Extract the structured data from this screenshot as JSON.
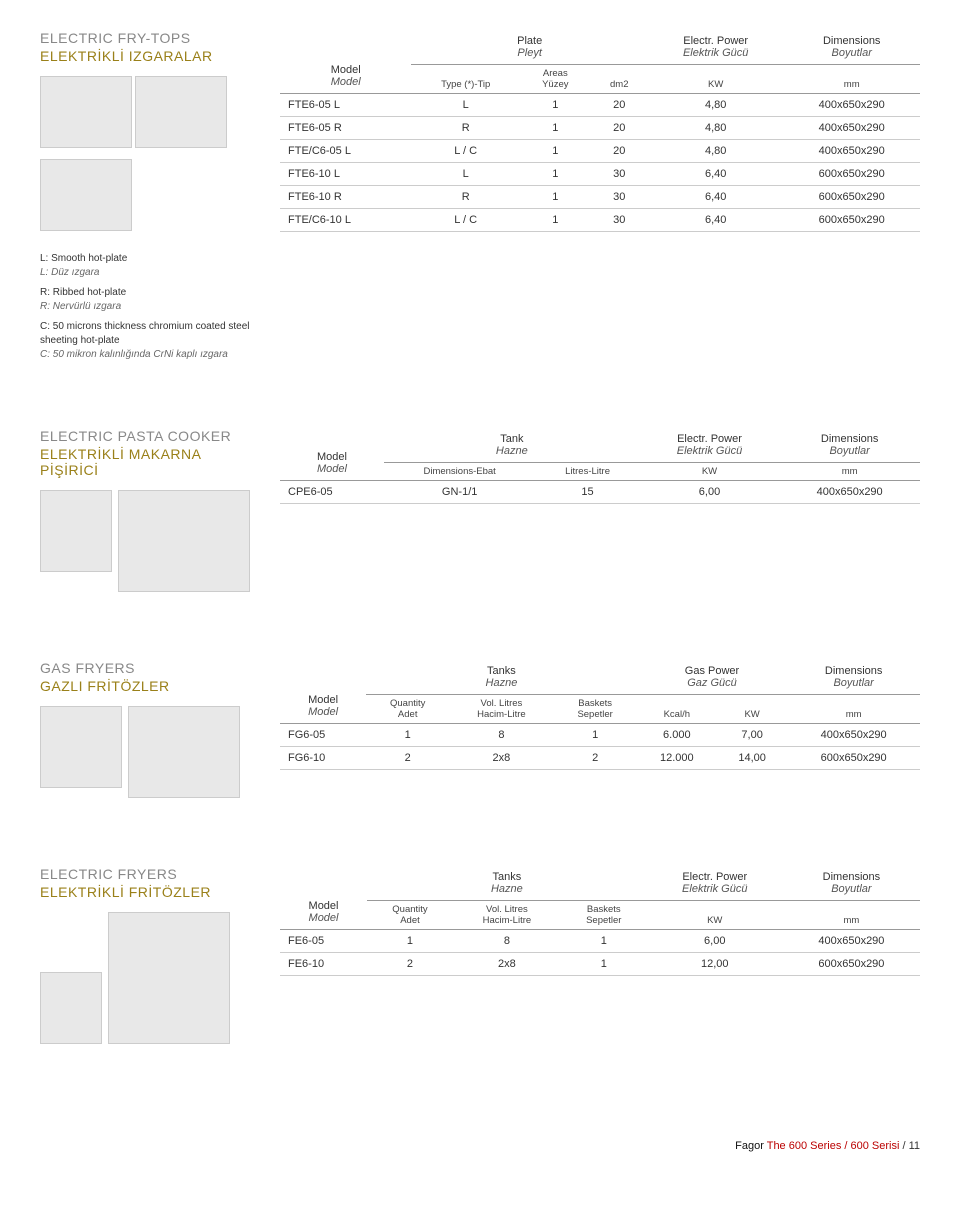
{
  "frytops": {
    "title_en": "ELECTRIC FRY-TOPS",
    "title_tr": "ELEKTRİKLİ IZGARALAR",
    "legend": {
      "l_en": "L: Smooth hot-plate",
      "l_tr": "L: Düz ızgara",
      "r_en": "R: Ribbed hot-plate",
      "r_tr": "R: Nervürlü ızgara",
      "c_en": "C: 50 microns thickness chromium coated steel sheeting hot-plate",
      "c_tr": "C: 50 mikron kalınlığında CrNi kaplı ızgara"
    },
    "headers": {
      "model_en": "Model",
      "model_tr": "Model",
      "plate_en": "Plate",
      "plate_tr": "Pleyt",
      "power_en": "Electr. Power",
      "power_tr": "Elektrik Gücü",
      "dim_en": "Dimensions",
      "dim_tr": "Boyutlar",
      "type": "Type (*)-Tip",
      "areas_en": "Areas",
      "areas_tr": "Yüzey",
      "dm2": "dm2",
      "kw": "KW",
      "mm": "mm"
    },
    "rows": [
      {
        "m": "FTE6-05 L",
        "t": "L",
        "a": "1",
        "d": "20",
        "kw": "4,80",
        "dim": "400x650x290"
      },
      {
        "m": "FTE6-05 R",
        "t": "R",
        "a": "1",
        "d": "20",
        "kw": "4,80",
        "dim": "400x650x290"
      },
      {
        "m": "FTE/C6-05 L",
        "t": "L / C",
        "a": "1",
        "d": "20",
        "kw": "4,80",
        "dim": "400x650x290"
      },
      {
        "m": "FTE6-10 L",
        "t": "L",
        "a": "1",
        "d": "30",
        "kw": "6,40",
        "dim": "600x650x290"
      },
      {
        "m": "FTE6-10 R",
        "t": "R",
        "a": "1",
        "d": "30",
        "kw": "6,40",
        "dim": "600x650x290"
      },
      {
        "m": "FTE/C6-10 L",
        "t": "L / C",
        "a": "1",
        "d": "30",
        "kw": "6,40",
        "dim": "600x650x290"
      }
    ]
  },
  "pasta": {
    "title_en": "ELECTRIC PASTA COOKER",
    "title_tr": "ELEKTRİKLİ MAKARNA PİŞİRİCİ",
    "headers": {
      "model_en": "Model",
      "model_tr": "Model",
      "tank_en": "Tank",
      "tank_tr": "Hazne",
      "power_en": "Electr. Power",
      "power_tr": "Elektrik Gücü",
      "dim_en": "Dimensions",
      "dim_tr": "Boyutlar",
      "dimebat": "Dimensions-Ebat",
      "litres": "Litres-Litre",
      "kw": "KW",
      "mm": "mm"
    },
    "rows": [
      {
        "m": "CPE6-05",
        "de": "GN-1/1",
        "l": "15",
        "kw": "6,00",
        "dim": "400x650x290"
      }
    ]
  },
  "gasfryers": {
    "title_en": "GAS FRYERS",
    "title_tr": "GAZLI FRİTÖZLER",
    "headers": {
      "model_en": "Model",
      "model_tr": "Model",
      "tanks_en": "Tanks",
      "tanks_tr": "Hazne",
      "power_en": "Gas Power",
      "power_tr": "Gaz Gücü",
      "dim_en": "Dimensions",
      "dim_tr": "Boyutlar",
      "qty_en": "Quantity",
      "qty_tr": "Adet",
      "vol_en": "Vol. Litres",
      "vol_tr": "Hacim-Litre",
      "bask_en": "Baskets",
      "bask_tr": "Sepetler",
      "kcal": "Kcal/h",
      "kw": "KW",
      "mm": "mm"
    },
    "rows": [
      {
        "m": "FG6-05",
        "q": "1",
        "v": "8",
        "b": "1",
        "kc": "6.000",
        "kw": "7,00",
        "dim": "400x650x290"
      },
      {
        "m": "FG6-10",
        "q": "2",
        "v": "2x8",
        "b": "2",
        "kc": "12.000",
        "kw": "14,00",
        "dim": "600x650x290"
      }
    ]
  },
  "elecfryers": {
    "title_en": "ELECTRIC FRYERS",
    "title_tr": "ELEKTRİKLİ FRİTÖZLER",
    "headers": {
      "model_en": "Model",
      "model_tr": "Model",
      "tanks_en": "Tanks",
      "tanks_tr": "Hazne",
      "power_en": "Electr. Power",
      "power_tr": "Elektrik Gücü",
      "dim_en": "Dimensions",
      "dim_tr": "Boyutlar",
      "qty_en": "Quantity",
      "qty_tr": "Adet",
      "vol_en": "Vol. Litres",
      "vol_tr": "Hacim-Litre",
      "bask_en": "Baskets",
      "bask_tr": "Sepetler",
      "kw": "KW",
      "mm": "mm"
    },
    "rows": [
      {
        "m": "FE6-05",
        "q": "1",
        "v": "8",
        "b": "1",
        "kw": "6,00",
        "dim": "400x650x290"
      },
      {
        "m": "FE6-10",
        "q": "2",
        "v": "2x8",
        "b": "1",
        "kw": "12,00",
        "dim": "600x650x290"
      }
    ]
  },
  "footer": {
    "brand": "Fagor ",
    "series": "The 600 Series / 600 Serisi ",
    "page": "/ 11"
  }
}
